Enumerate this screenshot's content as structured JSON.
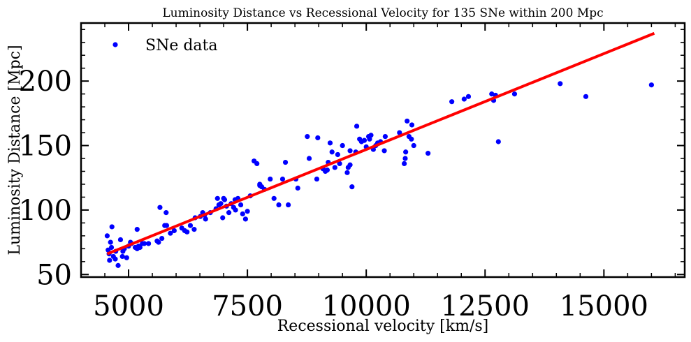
{
  "chart_data": {
    "type": "scatter",
    "title": "Luminosity Distance vs Recessional Velocity for 135 SNe within 200 Mpc",
    "xlabel": "Recessional velocity [km/s]",
    "ylabel": "Luminosity Distance [Mpc]",
    "xlim": [
      4000,
      16700
    ],
    "ylim": [
      48,
      245
    ],
    "xticks": [
      5000,
      7500,
      10000,
      12500,
      15000
    ],
    "xtick_labels": [
      "5000",
      "7500",
      "10000",
      "12500",
      "15000"
    ],
    "yticks": [
      50,
      100,
      150,
      200
    ],
    "ytick_labels": [
      "50",
      "100",
      "150",
      "200"
    ],
    "grid": false,
    "legend": {
      "position": "top-left",
      "entries": [
        "SNe data"
      ]
    },
    "series": [
      {
        "name": "SNe data",
        "kind": "scatter",
        "color": "#0000ff",
        "x": [
          4590,
          4600,
          4620,
          4640,
          4650,
          4680,
          4720,
          4730,
          4780,
          4830,
          4870,
          4880,
          4910,
          4960,
          5000,
          5040,
          5060,
          5140,
          5180,
          5210,
          5240,
          5290,
          5330,
          5420,
          5600,
          5630,
          5700,
          5760,
          5790,
          5800,
          5880,
          5960,
          6120,
          6180,
          6300,
          6380,
          6400,
          6510,
          6560,
          6600,
          6720,
          6840,
          6870,
          6900,
          6940,
          6980,
          7000,
          7020,
          7060,
          7110,
          7160,
          7210,
          7240,
          7300,
          7360,
          7400,
          7460,
          7500,
          7560,
          7640,
          7700,
          7760,
          7800,
          7860,
          7980,
          8060,
          8160,
          8240,
          8300,
          8360,
          8520,
          8560,
          8760,
          8960,
          8980,
          9090,
          9140,
          9180,
          9200,
          9240,
          9280,
          9340,
          9400,
          9440,
          9500,
          9600,
          9620,
          9660,
          9700,
          9780,
          9800,
          9860,
          9900,
          10000,
          10050,
          10100,
          10150,
          10200,
          10240,
          10300,
          10400,
          10700,
          10800,
          10830,
          10860,
          10900,
          10960,
          11000,
          11300,
          11800,
          12060,
          12150,
          12640,
          12680,
          12720,
          12780,
          13120,
          14080,
          14620,
          16000,
          4550,
          4570,
          5180,
          5660,
          6230,
          6620,
          7250,
          7760,
          8800,
          9660,
          9960,
          10070,
          10380,
          10820,
          10950
        ],
        "y": [
          66,
          61,
          75,
          71,
          87,
          64,
          62,
          68,
          57,
          77,
          64,
          68,
          70,
          63,
          72,
          75,
          74,
          71,
          85,
          72,
          71,
          74,
          74,
          74,
          76,
          75,
          78,
          88,
          98,
          88,
          82,
          84,
          86,
          84,
          88,
          85,
          94,
          95,
          98,
          96,
          98,
          101,
          109,
          104,
          105,
          94,
          109,
          108,
          103,
          98,
          105,
          102,
          108,
          109,
          104,
          97,
          93,
          99,
          111,
          138,
          136,
          120,
          118,
          116,
          124,
          109,
          104,
          124,
          137,
          104,
          124,
          117,
          157,
          124,
          156,
          132,
          130,
          131,
          137,
          152,
          145,
          133,
          143,
          136,
          150,
          129,
          133,
          146,
          118,
          145,
          165,
          155,
          153,
          149,
          157,
          158,
          147,
          150,
          152,
          153,
          157,
          160,
          136,
          145,
          169,
          157,
          166,
          150,
          144,
          184,
          186,
          188,
          190,
          185,
          189,
          153,
          190,
          198,
          188,
          197,
          80,
          69,
          70,
          102,
          83,
          93,
          100,
          119,
          140,
          135,
          154,
          155,
          146,
          140,
          155
        ]
      },
      {
        "name": "",
        "kind": "line",
        "color": "#ff0000",
        "x": [
          4550,
          16060
        ],
        "y": [
          66,
          237
        ]
      }
    ]
  }
}
